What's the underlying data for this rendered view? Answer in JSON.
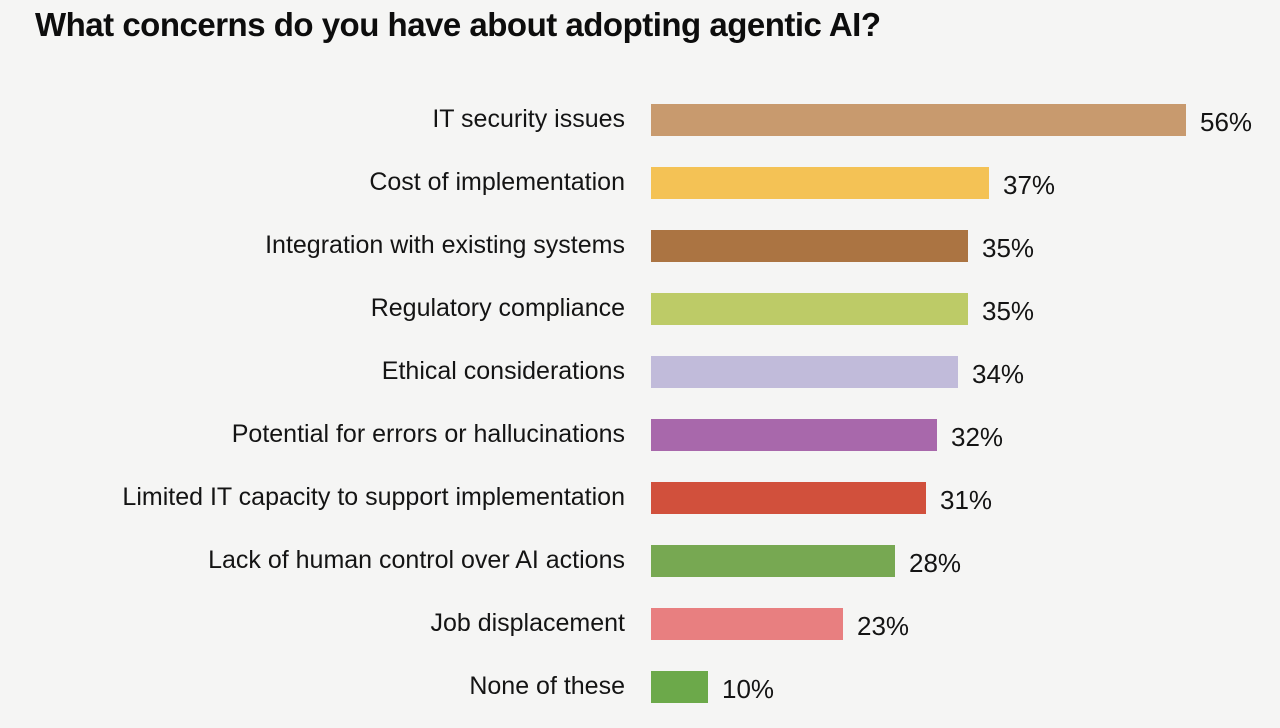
{
  "page": {
    "background": "#f5f5f4"
  },
  "chart_data": {
    "type": "bar",
    "orientation": "horizontal",
    "title": "What concerns do you have about adopting agentic AI?",
    "xlabel": "",
    "ylabel": "",
    "grid": false,
    "legend_position": "none",
    "axis_ticks_visible": false,
    "value_label_format": "percent",
    "categories": [
      "IT security issues",
      "Cost of implementation",
      "Integration with existing systems",
      "Regulatory compliance",
      "Ethical considerations",
      "Potential for errors or hallucinations",
      "Limited IT capacity to support implementation",
      "Lack of human control over AI actions",
      "Job displacement",
      "None of these"
    ],
    "values": [
      56,
      37,
      35,
      35,
      34,
      32,
      31,
      28,
      23,
      10
    ],
    "value_labels": [
      "56%",
      "37%",
      "35%",
      "35%",
      "34%",
      "32%",
      "31%",
      "28%",
      "23%",
      "10%"
    ],
    "colors": [
      "#c89a6e",
      "#f4c255",
      "#ab7442",
      "#bdcb67",
      "#c1bbda",
      "#a868ab",
      "#d1503c",
      "#77a852",
      "#e87f80",
      "#6ca94a"
    ],
    "text_color": "#141414",
    "background_color": "#f5f5f4"
  }
}
